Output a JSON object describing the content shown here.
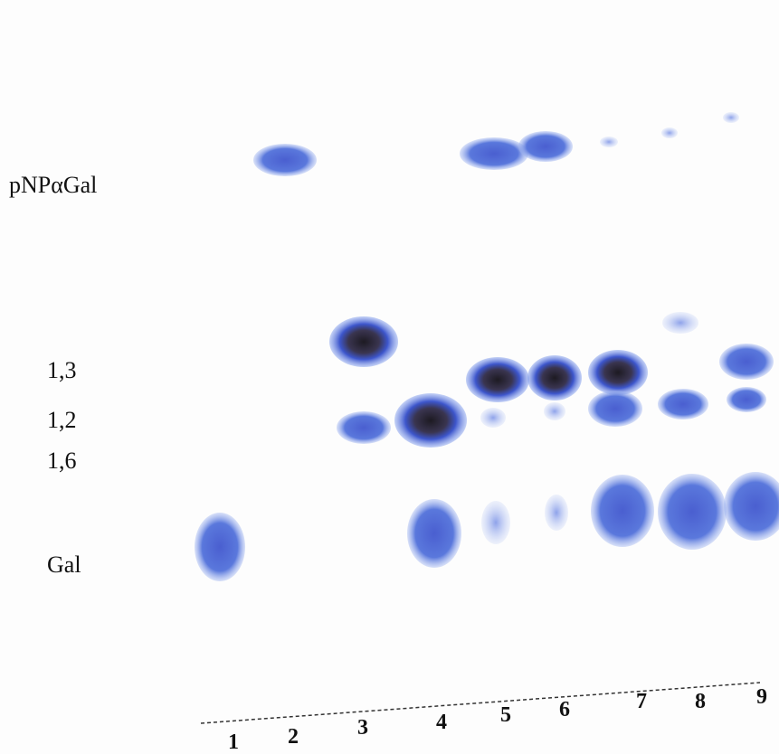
{
  "row_labels": [
    "pNPαGal",
    "1,3",
    "1,2",
    "1,6",
    "Gal"
  ],
  "lanes": [
    "1",
    "2",
    "3",
    "4",
    "5",
    "6",
    "7",
    "8",
    "9"
  ]
}
